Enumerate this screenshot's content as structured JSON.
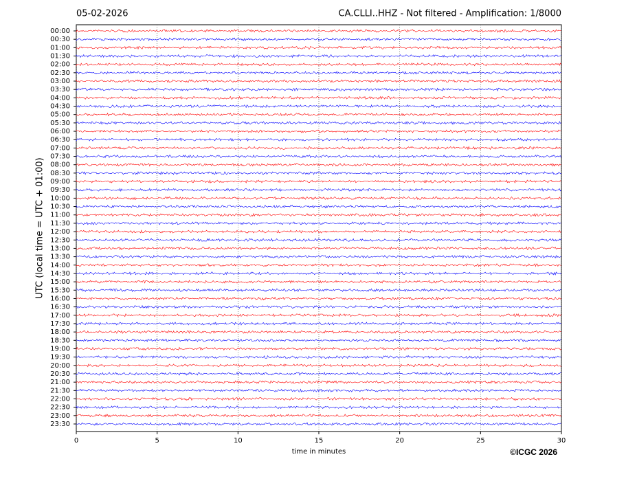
{
  "chart_data": {
    "type": "helicorder",
    "date": "05-02-2026",
    "title": "CA.CLLI..HHZ - Not filtered - Amplification: 1/8000",
    "ylabel": "UTC (local time = UTC + 01:00)",
    "xlabel": "time in minutes",
    "credit": "©ICGC 2026",
    "categories": [
      "00:00",
      "00:30",
      "01:00",
      "01:30",
      "02:00",
      "02:30",
      "03:00",
      "03:30",
      "04:00",
      "04:30",
      "05:00",
      "05:30",
      "06:00",
      "06:30",
      "07:00",
      "07:30",
      "08:00",
      "08:30",
      "09:00",
      "09:30",
      "10:00",
      "10:30",
      "11:00",
      "11:30",
      "12:00",
      "12:30",
      "13:00",
      "13:30",
      "14:00",
      "14:30",
      "15:00",
      "15:30",
      "16:00",
      "16:30",
      "17:00",
      "17:30",
      "18:00",
      "18:30",
      "19:00",
      "19:30",
      "20:00",
      "20:30",
      "21:00",
      "21:30",
      "22:00",
      "22:30",
      "23:00",
      "23:30"
    ],
    "colors": [
      "#ff0000",
      "#0000ff"
    ],
    "xlim": [
      0,
      30
    ],
    "xticks": [
      0,
      5,
      10,
      15,
      20,
      25,
      30
    ],
    "grid": true
  }
}
